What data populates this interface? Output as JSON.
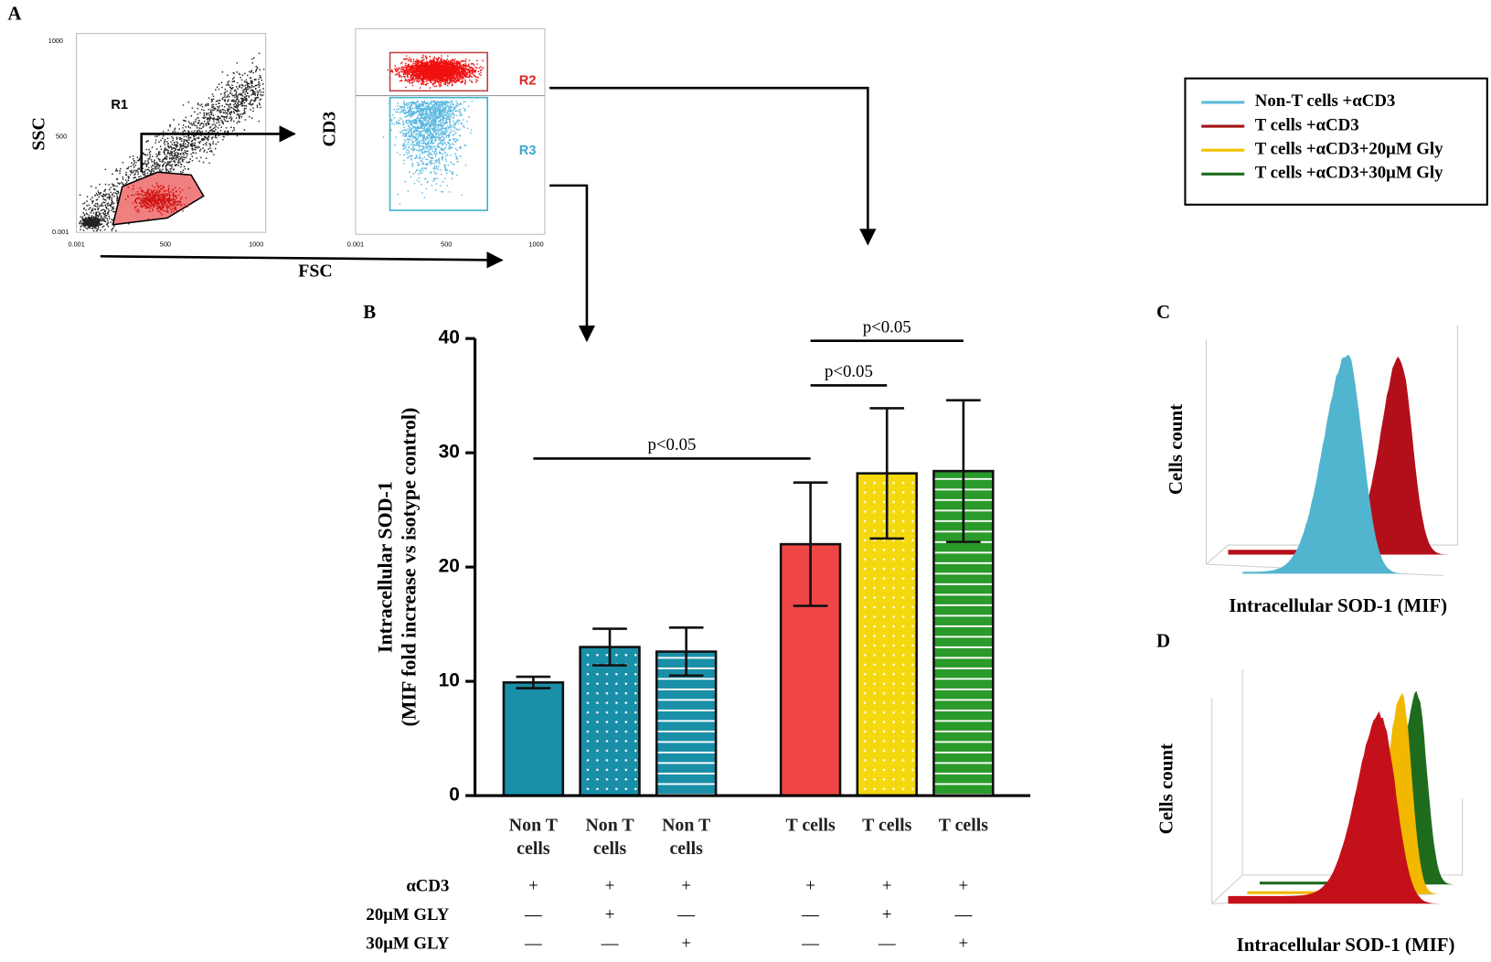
{
  "panel_labels": [
    "A",
    "B",
    "C",
    "D"
  ],
  "flow_cytometry": {
    "x_label": "FSC",
    "y_label_1": "SSC",
    "y_label_2": "CD3",
    "gates": [
      "R1",
      "R2",
      "R3"
    ],
    "ticks": [
      "0.001",
      "500",
      "1000"
    ]
  },
  "legend": [
    {
      "name": "Non-T cells +αCD3",
      "color": "#5bbcd6"
    },
    {
      "name": "T cells +αCD3",
      "color": "#a31515"
    },
    {
      "name": "T cells +αCD3+20μM Gly",
      "color": "#f2c200"
    },
    {
      "name": "T cells +αCD3+30μM Gly",
      "color": "#1e6b1e"
    }
  ],
  "chart_data": {
    "type": "bar",
    "ylabel": [
      "Intracellular SOD-1",
      "(MIF fold increase vs isotype control)"
    ],
    "categories": [
      "Non T cells",
      "Non T cells",
      "Non T cells",
      "T cells",
      "T cells",
      "T cells"
    ],
    "values": [
      9.9,
      13,
      12.6,
      22,
      28.2,
      28.4
    ],
    "errors": [
      0.5,
      1.6,
      2.1,
      5.4,
      5.7,
      6.2
    ],
    "colors": [
      "#1a8fa8",
      "#1a8fa8",
      "#1a8fa8",
      "#f04545",
      "#f5d90f",
      "#2a9a2a"
    ],
    "patterns": [
      "solid",
      "dots",
      "stripes",
      "solid",
      "dots",
      "stripes"
    ],
    "ylim": [
      0,
      40
    ],
    "yticks": [
      0,
      10,
      20,
      30,
      40
    ],
    "treatments": [
      {
        "name": "αCD3",
        "marks": [
          "+",
          "+",
          "+",
          "+",
          "+",
          "+"
        ]
      },
      {
        "name": "20μM GLY",
        "marks": [
          "—",
          "+",
          "—",
          "—",
          "+",
          "—"
        ]
      },
      {
        "name": "30μM GLY",
        "marks": [
          "—",
          "—",
          "+",
          "—",
          "—",
          "+"
        ]
      }
    ],
    "annotations": [
      {
        "text": "p<0.05",
        "from": 0,
        "to": 3,
        "y": 29.5
      },
      {
        "text": "p<0.05",
        "from": 3,
        "to": 4,
        "y": 35.9
      },
      {
        "text": "p<0.05",
        "from": 3,
        "to": 5,
        "y": 39.8
      }
    ]
  },
  "histograms": {
    "C": {
      "ylabel": "Cells count",
      "xlabel": "Intracellular SOD-1 (MIF)"
    },
    "D": {
      "ylabel": "Cells count",
      "xlabel": "Intracellular SOD-1 (MIF)"
    }
  }
}
